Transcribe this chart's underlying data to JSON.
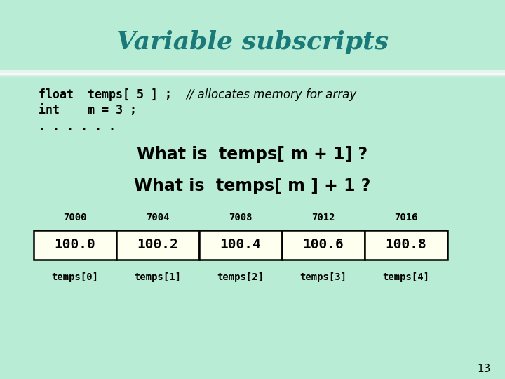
{
  "title": "Variable subscripts",
  "title_color": "#1a7a7a",
  "bg_color": "#b8ecd4",
  "shimmer_color": "#dff5e8",
  "line1a": "float  temps[ 5 ] ;",
  "line1b": "// allocates memory for array",
  "line2": "int    m = 3 ;",
  "line3": ". . . . . .",
  "question1": "What is  temps[ m + 1] ?",
  "question2": "What is  temps[ m ] + 1 ?",
  "addresses": [
    "7000",
    "7004",
    "7008",
    "7012",
    "7016"
  ],
  "values": [
    "100.0",
    "100.2",
    "100.4",
    "100.6",
    "100.8"
  ],
  "subscripts": [
    "temps[0]",
    "temps[1]",
    "temps[2]",
    "temps[3]",
    "temps[4]"
  ],
  "cell_bg": "#fffff0",
  "page_number": "13",
  "title_fontsize": 26,
  "code_fontsize": 12,
  "question_fontsize": 17,
  "table_val_fontsize": 14,
  "address_fontsize": 10
}
